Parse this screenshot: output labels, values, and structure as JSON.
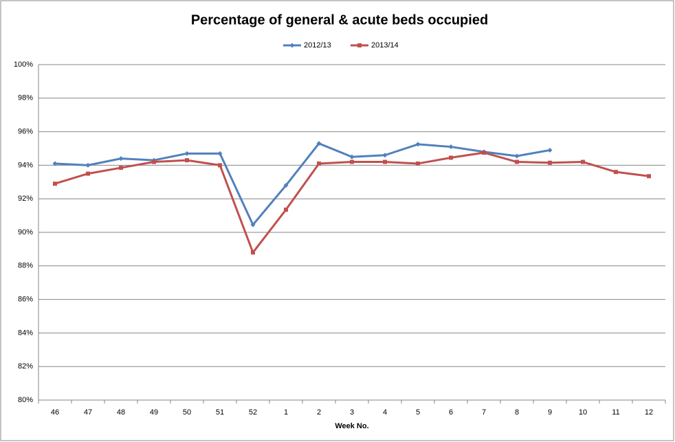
{
  "chart_data": {
    "type": "line",
    "title": "Percentage of general & acute beds occupied",
    "x_label": "Week No.",
    "categories": [
      "46",
      "47",
      "48",
      "49",
      "50",
      "51",
      "52",
      "1",
      "2",
      "3",
      "4",
      "5",
      "6",
      "7",
      "8",
      "9",
      "10",
      "11",
      "12"
    ],
    "series": [
      {
        "name": "2012/13",
        "color": "#4f81bd",
        "values": [
          94.1,
          94.0,
          94.4,
          94.3,
          94.7,
          94.7,
          90.45,
          92.8,
          95.3,
          94.5,
          94.6,
          95.25,
          95.1,
          94.8,
          94.55,
          94.9,
          null,
          null,
          null
        ]
      },
      {
        "name": "2013/14",
        "color": "#c0504d",
        "values": [
          92.9,
          93.5,
          93.85,
          94.2,
          94.3,
          94.0,
          88.8,
          91.35,
          94.1,
          94.2,
          94.2,
          94.1,
          94.45,
          94.75,
          94.2,
          94.15,
          94.2,
          93.6,
          93.35
        ]
      }
    ],
    "ylim": [
      80,
      100
    ],
    "yticks": [
      {
        "value": 80,
        "label": "80%"
      },
      {
        "value": 82,
        "label": "82%"
      },
      {
        "value": 84,
        "label": "84%"
      },
      {
        "value": 86,
        "label": "86%"
      },
      {
        "value": 88,
        "label": "88%"
      },
      {
        "value": 90,
        "label": "90%"
      },
      {
        "value": 92,
        "label": "92%"
      },
      {
        "value": 94,
        "label": "94%"
      },
      {
        "value": 96,
        "label": "96%"
      },
      {
        "value": 98,
        "label": "98%"
      },
      {
        "value": 100,
        "label": "100%"
      }
    ],
    "grid": true,
    "legend": "top"
  }
}
